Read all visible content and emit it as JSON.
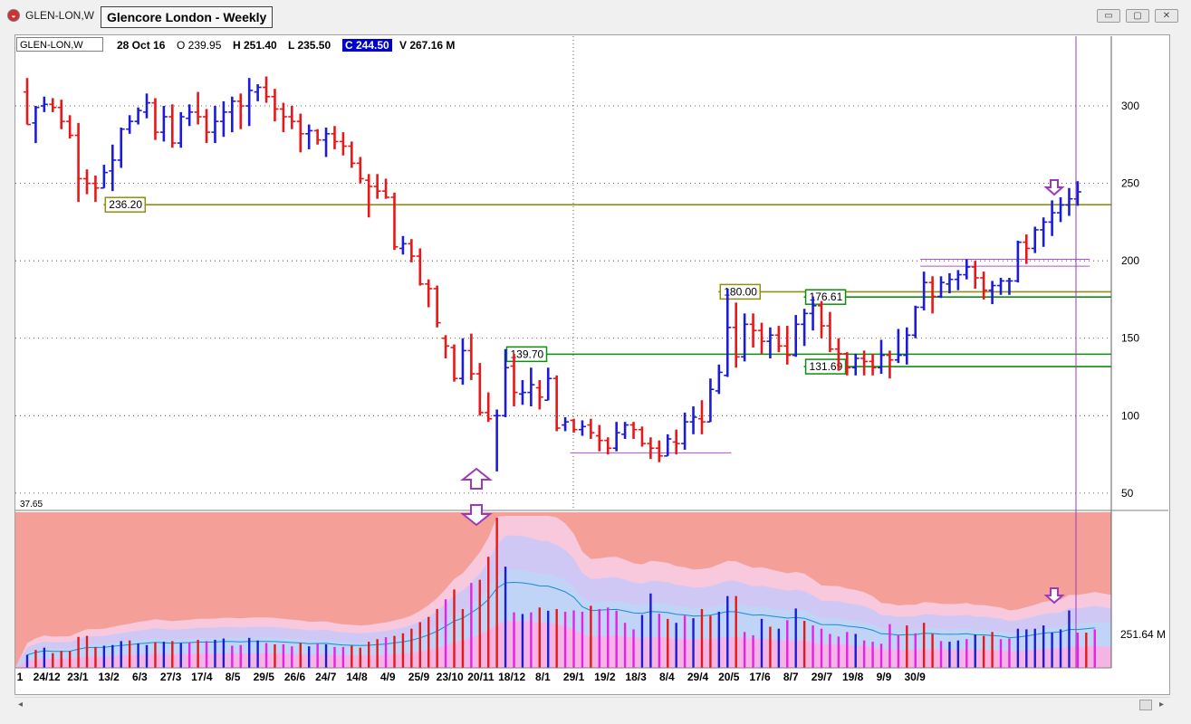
{
  "window": {
    "code": "GLEN-LON,W",
    "title": "Glencore London - Weekly",
    "minimize_symbol": "▭",
    "restore_symbol": "▢",
    "close_symbol": "✕"
  },
  "info": {
    "symbol": "GLEN-LON,W",
    "date": "28 Oct 16",
    "open": "O 239.95",
    "high": "H 251.40",
    "low": "L 235.50",
    "close": "C 244.50",
    "volume": "V 267.16 M"
  },
  "colors": {
    "up": "#1c1cd8",
    "down": "#e81818",
    "level_olive": "#909010",
    "level_green": "#108c10",
    "marker": "#9a3ab8",
    "volume_magenta": "#e820e8",
    "volume_bg": "#f4a098"
  },
  "icons": {
    "app": "chart-app-icon",
    "scroll_left": "◂",
    "scroll_right": "▸"
  },
  "chart_data": [
    {
      "type": "bar",
      "subtype": "ohlc",
      "ylim": [
        40,
        345
      ],
      "yticks": [
        50,
        100,
        150,
        200,
        250,
        300
      ],
      "grid": true,
      "corner_label": "37.65",
      "xtick_labels": [
        "1",
        "24/12",
        "23/1",
        "13/2",
        "6/3",
        "27/3",
        "17/4",
        "8/5",
        "29/5",
        "26/6",
        "24/7",
        "14/8",
        "4/9",
        "25/9",
        "23/10",
        "20/11",
        "18/12",
        "8/1",
        "29/1",
        "19/2",
        "18/3",
        "8/4",
        "29/4",
        "20/5",
        "17/6",
        "8/7",
        "29/7",
        "19/8",
        "9/9",
        "30/9"
      ],
      "bars": [
        [
          309.0,
          318.0,
          288.0,
          288.0
        ],
        [
          289.0,
          300.0,
          276.0,
          299.0
        ],
        [
          300.0,
          306.0,
          296.0,
          301.0
        ],
        [
          301.0,
          305.0,
          296.0,
          299.0
        ],
        [
          299.0,
          304.0,
          285.0,
          290.0
        ],
        [
          290.0,
          294.0,
          279.0,
          281.0
        ],
        [
          281.0,
          289.0,
          238.0,
          253.0
        ],
        [
          253.0,
          259.0,
          243.0,
          250.0
        ],
        [
          250.0,
          255.0,
          238.0,
          247.0
        ],
        [
          247.0,
          262.0,
          247.0,
          257.0
        ],
        [
          258.0,
          275.0,
          245.0,
          265.0
        ],
        [
          265.0,
          286.0,
          260.0,
          285.0
        ],
        [
          285.0,
          294.0,
          282.0,
          290.0
        ],
        [
          290.0,
          299.0,
          288.0,
          297.0
        ],
        [
          296.0,
          308.0,
          292.0,
          302.0
        ],
        [
          302.0,
          305.0,
          278.0,
          283.0
        ],
        [
          283.0,
          300.0,
          277.0,
          293.0
        ],
        [
          293.0,
          301.0,
          273.0,
          276.0
        ],
        [
          276.0,
          296.0,
          273.0,
          293.0
        ],
        [
          292.0,
          301.0,
          287.0,
          296.0
        ],
        [
          296.0,
          309.0,
          288.0,
          293.0
        ],
        [
          293.0,
          298.0,
          276.0,
          283.0
        ],
        [
          283.0,
          300.0,
          276.0,
          290.0
        ],
        [
          290.0,
          303.0,
          280.0,
          296.0
        ],
        [
          296.0,
          306.0,
          283.0,
          303.0
        ],
        [
          303.0,
          308.0,
          285.0,
          300.0
        ],
        [
          300.0,
          318.0,
          287.0,
          310.0
        ],
        [
          309.0,
          314.0,
          303.0,
          312.0
        ],
        [
          312.0,
          319.0,
          302.0,
          306.0
        ],
        [
          306.0,
          311.0,
          290.0,
          298.0
        ],
        [
          298.0,
          302.0,
          283.0,
          293.0
        ],
        [
          293.0,
          300.0,
          285.0,
          290.0
        ],
        [
          290.0,
          295.0,
          270.0,
          282.0
        ],
        [
          282.0,
          288.0,
          272.0,
          284.0
        ],
        [
          284.0,
          285.0,
          275.0,
          278.0
        ],
        [
          278.0,
          286.0,
          267.0,
          282.0
        ],
        [
          282.0,
          287.0,
          272.0,
          277.0
        ],
        [
          277.0,
          283.0,
          268.0,
          274.0
        ],
        [
          274.0,
          277.0,
          260.0,
          263.0
        ],
        [
          263.0,
          267.0,
          250.0,
          253.0
        ],
        [
          252.0,
          256.0,
          228.0,
          248.0
        ],
        [
          248.0,
          256.0,
          240.0,
          245.0
        ],
        [
          245.0,
          253.0,
          240.0,
          241.0
        ],
        [
          241.0,
          244.0,
          207.0,
          209.0
        ],
        [
          208.0,
          216.0,
          204.0,
          211.0
        ],
        [
          211.0,
          214.0,
          199.0,
          203.0
        ],
        [
          203.0,
          208.0,
          184.0,
          185.0
        ],
        [
          185.0,
          188.0,
          170.0,
          182.0
        ],
        [
          182.0,
          184.0,
          157.0,
          160.0
        ],
        [
          150.0,
          152.0,
          137.0,
          145.0
        ],
        [
          144.0,
          146.0,
          122.0,
          124.0
        ],
        [
          124.0,
          150.0,
          120.0,
          142.0
        ],
        [
          142.0,
          153.0,
          123.0,
          127.0
        ],
        [
          127.0,
          134.0,
          100.0,
          102.0
        ],
        [
          102.0,
          115.0,
          96.0,
          98.0
        ],
        [
          100.0,
          104.0,
          64.0,
          100.0
        ],
        [
          100.0,
          143.0,
          99.0,
          131.0
        ],
        [
          132.0,
          140.0,
          106.0,
          115.0
        ],
        [
          114.0,
          123.0,
          107.0,
          115.0
        ],
        [
          115.0,
          131.0,
          106.0,
          120.0
        ],
        [
          118.0,
          123.0,
          104.0,
          112.0
        ],
        [
          110.0,
          131.0,
          110.0,
          124.0
        ],
        [
          124.0,
          126.0,
          90.0,
          92.0
        ],
        [
          94.0,
          99.0,
          90.0,
          96.0
        ],
        [
          97.0,
          98.0,
          89.0,
          91.0
        ],
        [
          91.0,
          97.0,
          87.0,
          93.0
        ],
        [
          94.0,
          98.0,
          85.0,
          89.0
        ],
        [
          87.0,
          94.0,
          77.0,
          84.0
        ],
        [
          84.0,
          86.0,
          75.0,
          79.0
        ],
        [
          79.0,
          96.0,
          77.0,
          89.0
        ],
        [
          88.0,
          96.0,
          85.0,
          94.0
        ],
        [
          94.0,
          96.0,
          85.0,
          91.0
        ],
        [
          91.0,
          93.0,
          80.0,
          82.0
        ],
        [
          82.0,
          86.0,
          72.0,
          79.0
        ],
        [
          79.0,
          84.0,
          70.0,
          74.0
        ],
        [
          74.0,
          88.0,
          74.0,
          85.0
        ],
        [
          83.0,
          91.0,
          75.0,
          82.0
        ],
        [
          82.0,
          102.0,
          78.0,
          96.0
        ],
        [
          96.0,
          106.0,
          88.0,
          99.0
        ],
        [
          98.0,
          110.0,
          88.0,
          96.0
        ],
        [
          96.0,
          124.0,
          96.0,
          117.0
        ],
        [
          116.0,
          133.0,
          114.0,
          128.0
        ],
        [
          126.0,
          182.0,
          125.0,
          157.0
        ],
        [
          157.0,
          173.0,
          131.0,
          138.0
        ],
        [
          138.0,
          166.0,
          135.0,
          159.0
        ],
        [
          159.0,
          166.0,
          144.0,
          155.0
        ],
        [
          155.0,
          160.0,
          140.0,
          148.0
        ],
        [
          148.0,
          157.0,
          137.0,
          152.0
        ],
        [
          152.0,
          158.0,
          141.0,
          145.0
        ],
        [
          145.0,
          158.0,
          133.0,
          139.0
        ],
        [
          139.0,
          165.0,
          138.0,
          159.0
        ],
        [
          159.0,
          169.0,
          145.0,
          166.0
        ],
        [
          166.0,
          177.0,
          155.0,
          171.0
        ],
        [
          171.0,
          174.0,
          150.0,
          158.0
        ],
        [
          158.0,
          167.0,
          141.0,
          143.0
        ],
        [
          143.0,
          150.0,
          129.0,
          140.0
        ],
        [
          140.0,
          141.0,
          126.0,
          131.0
        ],
        [
          131.0,
          140.0,
          126.0,
          137.0
        ],
        [
          137.0,
          142.0,
          126.0,
          135.0
        ],
        [
          135.0,
          140.0,
          126.0,
          131.0
        ],
        [
          131.0,
          149.0,
          127.0,
          139.0
        ],
        [
          139.0,
          142.0,
          124.0,
          136.0
        ],
        [
          136.0,
          156.0,
          134.0,
          139.0
        ],
        [
          139.0,
          157.0,
          133.0,
          152.0
        ],
        [
          152.0,
          171.0,
          150.0,
          170.0
        ],
        [
          170.0,
          193.0,
          168.0,
          186.0
        ],
        [
          186.0,
          190.0,
          166.0,
          177.0
        ],
        [
          177.0,
          190.0,
          176.0,
          186.0
        ],
        [
          185.0,
          192.0,
          179.0,
          188.0
        ],
        [
          188.0,
          194.0,
          181.0,
          191.0
        ],
        [
          191.0,
          201.0,
          188.0,
          196.0
        ],
        [
          196.0,
          200.0,
          182.0,
          189.0
        ],
        [
          189.0,
          193.0,
          175.0,
          181.0
        ],
        [
          181.0,
          187.0,
          172.0,
          184.0
        ],
        [
          184.0,
          189.0,
          178.0,
          187.0
        ],
        [
          187.0,
          189.0,
          178.0,
          187.0
        ],
        [
          187.0,
          213.0,
          186.0,
          212.0
        ],
        [
          212.0,
          217.0,
          198.0,
          208.0
        ],
        [
          208.0,
          222.0,
          205.0,
          220.0
        ],
        [
          220.0,
          228.0,
          209.0,
          225.0
        ],
        [
          225.0,
          239.0,
          216.0,
          231.0
        ],
        [
          231.0,
          241.0,
          225.0,
          236.0
        ],
        [
          236.0,
          247.0,
          229.0,
          240.0
        ],
        [
          239.95,
          251.4,
          235.5,
          244.5
        ]
      ],
      "levels": [
        {
          "value": 236.2,
          "label": "236.20",
          "color": "olive",
          "x_from": 10
        },
        {
          "value": 180.0,
          "label": "180.00",
          "color": "olive",
          "x_from": 82
        },
        {
          "value": 176.61,
          "label": "176.61",
          "color": "green",
          "x_from": 92
        },
        {
          "value": 139.7,
          "label": "139.70",
          "color": "green",
          "x_from": 57
        },
        {
          "value": 131.69,
          "label": "131.69",
          "color": "green",
          "x_from": 92
        }
      ],
      "short_lines": [
        {
          "value": 76.0,
          "x_from": 64,
          "x_to": 82
        },
        {
          "value": 201.0,
          "x_from": 105,
          "x_to": 124
        },
        {
          "value": 196.5,
          "x_from": 105,
          "x_to": 124
        }
      ]
    },
    {
      "type": "bar",
      "subtype": "volume",
      "value_label": "251.64 M",
      "ylim": [
        0,
        460
      ],
      "volumes": [
        40,
        55,
        62,
        45,
        52,
        52,
        95,
        98,
        64,
        68,
        70,
        82,
        84,
        75,
        70,
        78,
        80,
        82,
        76,
        78,
        86,
        82,
        86,
        90,
        68,
        70,
        92,
        84,
        76,
        72,
        72,
        66,
        76,
        66,
        74,
        72,
        64,
        64,
        68,
        62,
        80,
        88,
        94,
        98,
        106,
        120,
        140,
        156,
        180,
        210,
        240,
        180,
        260,
        270,
        340,
        460,
        310,
        170,
        165,
        170,
        185,
        175,
        180,
        172,
        176,
        172,
        190,
        180,
        185,
        175,
        138,
        118,
        162,
        228,
        166,
        150,
        138,
        160,
        152,
        180,
        160,
        172,
        220,
        220,
        110,
        100,
        150,
        126,
        120,
        146,
        182,
        144,
        130,
        120,
        104,
        96,
        110,
        104,
        84,
        80,
        74,
        134,
        100,
        130,
        106,
        138,
        104,
        82,
        80,
        84,
        88,
        102,
        98,
        110,
        88,
        90,
        120,
        118,
        120,
        130,
        108,
        118,
        176,
        108,
        108,
        118
      ],
      "directions": [
        "u",
        "d",
        "u",
        "d",
        "d",
        "d",
        "d",
        "d",
        "d",
        "u",
        "u",
        "u",
        "d",
        "u",
        "u",
        "d",
        "u",
        "d",
        "u",
        "m",
        "d",
        "m",
        "u",
        "u",
        "m",
        "m",
        "u",
        "u",
        "m",
        "d",
        "m",
        "m",
        "d",
        "u",
        "m",
        "u",
        "m",
        "m",
        "d",
        "d",
        "d",
        "d",
        "m",
        "d",
        "d",
        "d",
        "d",
        "d",
        "d",
        "m",
        "d",
        "d",
        "m",
        "d",
        "d",
        "d",
        "u",
        "m",
        "u",
        "m",
        "d",
        "u",
        "d",
        "m",
        "m",
        "m",
        "d",
        "m",
        "m",
        "m",
        "m",
        "m",
        "u",
        "u",
        "m",
        "d",
        "u",
        "m",
        "u",
        "d",
        "d",
        "u",
        "u",
        "d",
        "m",
        "m",
        "u",
        "d",
        "u",
        "m",
        "u",
        "d",
        "m",
        "m",
        "m",
        "m",
        "m",
        "u",
        "m",
        "m",
        "m",
        "m",
        "m",
        "d",
        "m",
        "d",
        "d",
        "m",
        "u",
        "u",
        "m",
        "u",
        "d",
        "d",
        "m",
        "m",
        "u",
        "u",
        "u",
        "u",
        "u",
        "u",
        "u",
        "m",
        "d",
        "m"
      ]
    }
  ]
}
